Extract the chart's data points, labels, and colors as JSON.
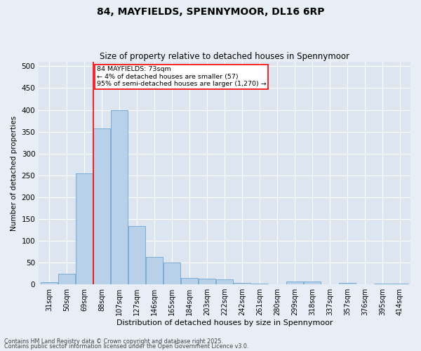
{
  "title1": "84, MAYFIELDS, SPENNYMOOR, DL16 6RP",
  "title2": "Size of property relative to detached houses in Spennymoor",
  "xlabel": "Distribution of detached houses by size in Spennymoor",
  "ylabel": "Number of detached properties",
  "bar_color": "#b8d0e8",
  "bar_edge_color": "#7aacd4",
  "background_color": "#dde6f0",
  "fig_background_color": "#e8eef5",
  "grid_color": "#ffffff",
  "categories": [
    "31sqm",
    "50sqm",
    "69sqm",
    "88sqm",
    "107sqm",
    "127sqm",
    "146sqm",
    "165sqm",
    "184sqm",
    "203sqm",
    "222sqm",
    "242sqm",
    "261sqm",
    "280sqm",
    "299sqm",
    "318sqm",
    "337sqm",
    "357sqm",
    "376sqm",
    "395sqm",
    "414sqm"
  ],
  "values": [
    5,
    25,
    255,
    358,
    400,
    133,
    63,
    50,
    15,
    13,
    11,
    4,
    1,
    0,
    7,
    7,
    0,
    3,
    0,
    2,
    1
  ],
  "ylim": [
    0,
    510
  ],
  "yticks": [
    0,
    50,
    100,
    150,
    200,
    250,
    300,
    350,
    400,
    450,
    500
  ],
  "red_line_x": 2.5,
  "annotation_text": "84 MAYFIELDS: 73sqm\n← 4% of detached houses are smaller (57)\n95% of semi-detached houses are larger (1,270) →",
  "footer1": "Contains HM Land Registry data © Crown copyright and database right 2025.",
  "footer2": "Contains public sector information licensed under the Open Government Licence v3.0."
}
